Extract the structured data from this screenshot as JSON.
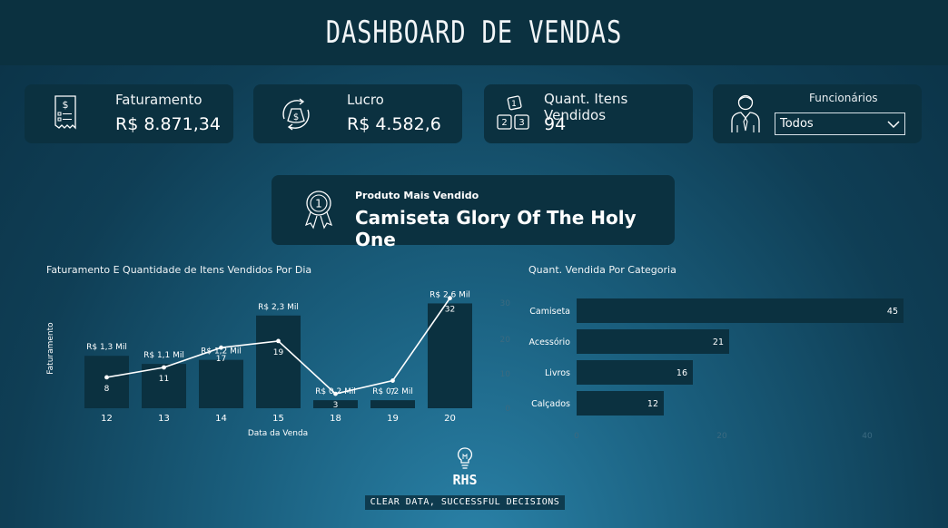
{
  "header": {
    "title": "DASHBOARD DE VENDAS"
  },
  "kpis": {
    "faturamento": {
      "label": "Faturamento",
      "value": "R$ 8.871,34",
      "icon": "receipt-dollar-icon"
    },
    "lucro": {
      "label": "Lucro",
      "value": "R$ 4.582,6",
      "icon": "money-bag-cycle-icon"
    },
    "itens": {
      "label": "Quant. Itens Vendidos",
      "value": "94",
      "icon": "numbered-blocks-icon"
    },
    "funcionarios": {
      "label": "Funcionários",
      "selected": "Todos",
      "icon": "employee-icon"
    }
  },
  "top_product": {
    "label": "Produto Mais Vendido",
    "value": "Camiseta Glory Of The Holy One",
    "icon": "award-medal-icon"
  },
  "colors": {
    "card": "#0b3140",
    "bar": "#0b3140",
    "line": "#ffffff",
    "text": "#ffffff"
  },
  "chart_data": [
    {
      "type": "bar",
      "title": "Faturamento E Quantidade de Itens Vendidos Por Dia",
      "xlabel": "Data da Venda",
      "ylabel": "Faturamento",
      "categories": [
        "12",
        "13",
        "14",
        "15",
        "18",
        "19",
        "20"
      ],
      "series": [
        {
          "type": "bar",
          "values": [
            1300,
            1100,
            1200,
            2300,
            200,
            200,
            2600
          ],
          "labels": [
            "R$ 1,3 Mil",
            "R$ 1,1 Mil",
            "R$ 1,2 Mil",
            "R$ 2,3 Mil",
            "R$ 0,2 Mil",
            "R$ 0,2 Mil",
            "R$ 2,6 Mil"
          ]
        },
        {
          "type": "line",
          "values": [
            8,
            11,
            17,
            19,
            3,
            7,
            32
          ]
        }
      ]
    },
    {
      "type": "bar",
      "orientation": "horizontal",
      "title": "Quant. Vendida Por Categoria",
      "categories": [
        "Camiseta",
        "Acessório",
        "Livros",
        "Calçados"
      ],
      "values": [
        45,
        21,
        16,
        12
      ],
      "xticks": [
        "0",
        "20",
        "40"
      ],
      "yticks": [
        "30",
        "20",
        "10",
        "0"
      ],
      "xlim": [
        0,
        45
      ]
    }
  ],
  "brand": {
    "name": "RHS",
    "tagline": "CLEAR DATA, SUCCESSFUL DECISIONS",
    "icon": "lightbulb-icon"
  }
}
